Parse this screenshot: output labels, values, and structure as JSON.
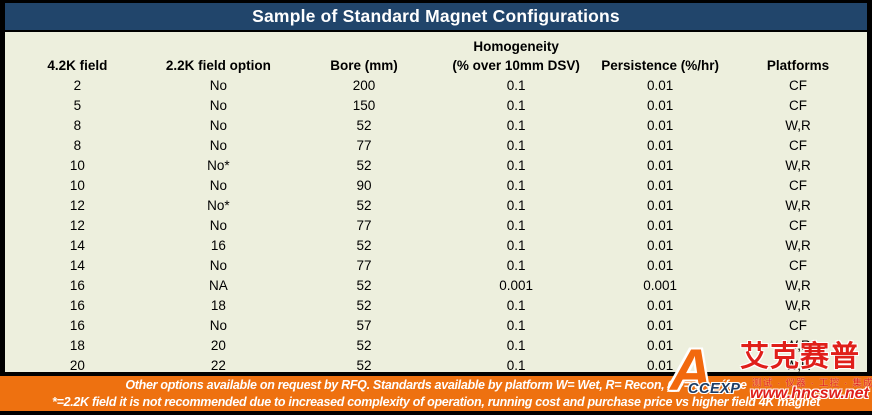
{
  "title": "Sample of Standard Magnet Configurations",
  "table": {
    "group_header": "Homogeneity",
    "columns": [
      "4.2K field",
      "2.2K field option",
      "Bore (mm)",
      "(% over 10mm DSV)",
      "Persistence (%/hr)",
      "Platforms"
    ],
    "rows": [
      [
        "2",
        "No",
        "200",
        "0.1",
        "0.01",
        "CF"
      ],
      [
        "5",
        "No",
        "150",
        "0.1",
        "0.01",
        "CF"
      ],
      [
        "8",
        "No",
        "52",
        "0.1",
        "0.01",
        "W,R"
      ],
      [
        "8",
        "No",
        "77",
        "0.1",
        "0.01",
        "CF"
      ],
      [
        "10",
        "No*",
        "52",
        "0.1",
        "0.01",
        "W,R"
      ],
      [
        "10",
        "No",
        "90",
        "0.1",
        "0.01",
        "CF"
      ],
      [
        "12",
        "No*",
        "52",
        "0.1",
        "0.01",
        "W,R"
      ],
      [
        "12",
        "No",
        "77",
        "0.1",
        "0.01",
        "CF"
      ],
      [
        "14",
        "16",
        "52",
        "0.1",
        "0.01",
        "W,R"
      ],
      [
        "14",
        "No",
        "77",
        "0.1",
        "0.01",
        "CF"
      ],
      [
        "16",
        "NA",
        "52",
        "0.001",
        "0.001",
        "W,R"
      ],
      [
        "16",
        "18",
        "52",
        "0.1",
        "0.01",
        "W,R"
      ],
      [
        "16",
        "No",
        "57",
        "0.1",
        "0.01",
        "CF"
      ],
      [
        "18",
        "20",
        "52",
        "0.1",
        "0.01",
        "W,R"
      ],
      [
        "20",
        "22",
        "52",
        "0.1",
        "0.01",
        "W,R"
      ]
    ]
  },
  "footer": {
    "line1": "Other options available on request by RFQ. Standards available by platform W= Wet, R= Recon, CF= Cryo´free",
    "line2": "*=2.2K field it is not recommended due to increased complexity of operation, running cost and purchase price vs higher field 4K magnet"
  },
  "watermark": {
    "logo_letter": "A",
    "logo_text": "CCEXP",
    "brand_cn": "艾克赛普",
    "tagline_cn": "测试 · 仪器 · 工控 · 集成",
    "url": "www.hncsw.net"
  },
  "colors": {
    "title_bg": "#21456B",
    "table_bg": "#EDEFDD",
    "footer_bg": "#EE7110",
    "brand_red": "#E01F1A",
    "logo_orange": "#F2690E"
  }
}
